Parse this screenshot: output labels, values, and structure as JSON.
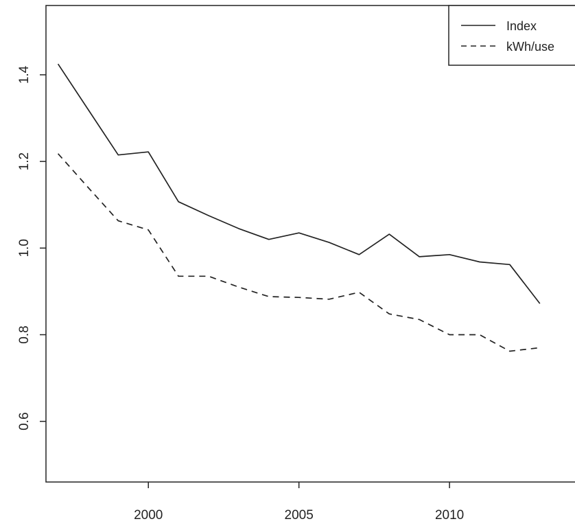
{
  "chart_data": {
    "type": "line",
    "title": "",
    "xlabel": "",
    "ylabel": "",
    "xlim": [
      1996.6,
      2014.6
    ],
    "ylim": [
      0.46,
      1.56
    ],
    "x_ticks": [
      2000,
      2005,
      2010
    ],
    "x_tick_labels": [
      "2000",
      "2005",
      "2010"
    ],
    "y_ticks": [
      0.6,
      0.8,
      1.0,
      1.2,
      1.4
    ],
    "y_tick_labels": [
      "0.6",
      "0.8",
      "1.0",
      "1.2",
      "1.4"
    ],
    "grid": false,
    "legend_position": "top-right",
    "colors": {
      "line": "#222222",
      "axis": "#222222",
      "background": "#ffffff"
    },
    "x": [
      1997,
      1998,
      1999,
      2000,
      2001,
      2002,
      2003,
      2004,
      2005,
      2006,
      2007,
      2008,
      2009,
      2010,
      2011,
      2012,
      2013
    ],
    "series": [
      {
        "name": "Index",
        "line_style": "solid",
        "values": [
          1.425,
          1.32,
          1.215,
          1.222,
          1.107,
          1.075,
          1.045,
          1.02,
          1.035,
          1.013,
          0.985,
          1.032,
          0.98,
          0.985,
          0.968,
          0.962,
          0.872
        ]
      },
      {
        "name": "kWh/use",
        "line_style": "dashed",
        "values": [
          1.218,
          1.14,
          1.063,
          1.042,
          0.935,
          0.935,
          0.91,
          0.888,
          0.886,
          0.882,
          0.898,
          0.848,
          0.835,
          0.8,
          0.8,
          0.762,
          0.77
        ]
      }
    ]
  }
}
